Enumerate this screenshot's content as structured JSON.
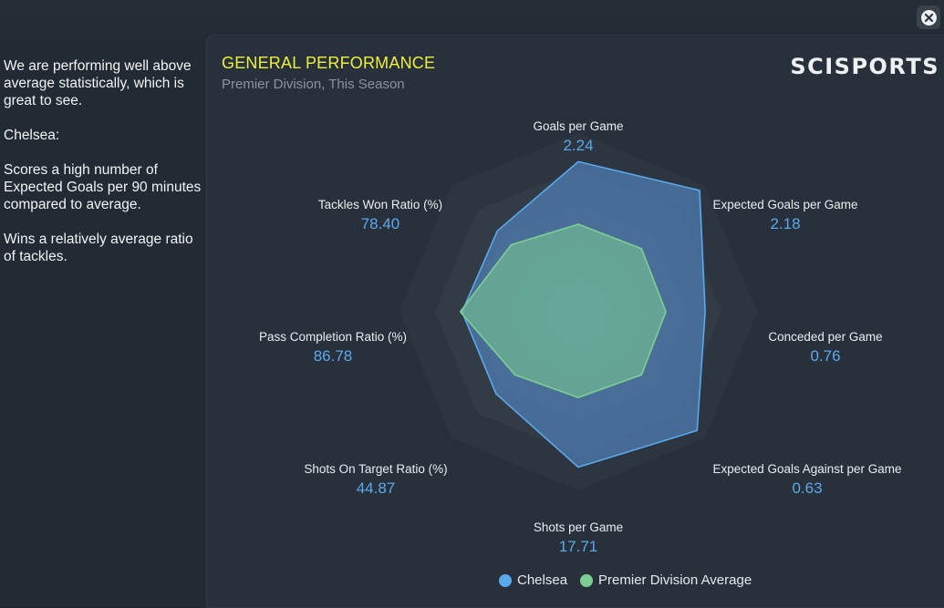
{
  "summary": {
    "paragraphs": [
      "We are performing well above average statistically, which is great to see.",
      "Chelsea:",
      "Scores a high number of Expected Goals per 90 minutes compared to average.",
      "Wins a relatively average ratio of tackles."
    ]
  },
  "panel": {
    "title": "GENERAL PERFORMANCE",
    "subtitle": "Premier Division, This Season",
    "logo": "SCISPORTS"
  },
  "colors": {
    "team": "#5aa9ec",
    "average": "#7ccf94",
    "title": "#ecef3f"
  },
  "legend": {
    "team_label": "Chelsea",
    "average_label": "Premier Division Average"
  },
  "chart_data": {
    "type": "radar",
    "title": "GENERAL PERFORMANCE",
    "series": [
      {
        "name": "Chelsea",
        "values": [
          0.84,
          0.96,
          0.71,
          0.94,
          0.87,
          0.65,
          0.65,
          0.64
        ]
      },
      {
        "name": "Premier Division Average",
        "values": [
          0.49,
          0.5,
          0.49,
          0.5,
          0.48,
          0.5,
          0.66,
          0.53
        ]
      }
    ],
    "axes": [
      {
        "label": "Goals per Game",
        "value": "2.24"
      },
      {
        "label": "Expected Goals per Game",
        "value": "2.18"
      },
      {
        "label": "Conceded per Game",
        "value": "0.76"
      },
      {
        "label": "Expected Goals Against per Game",
        "value": "0.63"
      },
      {
        "label": "Shots per Game",
        "value": "17.71"
      },
      {
        "label": "Shots On Target Ratio (%)",
        "value": "44.87"
      },
      {
        "label": "Pass Completion Ratio (%)",
        "value": "86.78"
      },
      {
        "label": "Tackles Won Ratio (%)",
        "value": "78.40"
      }
    ],
    "rings": 5
  }
}
